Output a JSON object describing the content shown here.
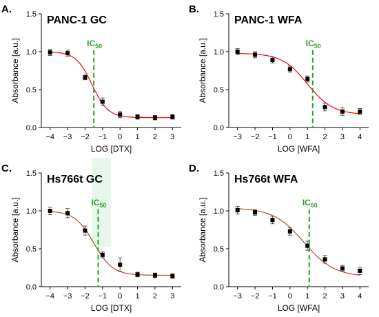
{
  "colors": {
    "axis": "#000000",
    "point": "#000000",
    "error_bar": "#444444",
    "ic50": "#2ca02c",
    "ic50_highlight": "#e6f7e9"
  },
  "chart_data": [
    {
      "type": "scatter",
      "panel_letter": "A.",
      "title": "PANC-1 GC",
      "xlabel": "LOG [DTX]",
      "ylabel": "Absorbance [a.u.]",
      "xlim": [
        -4.5,
        3.5
      ],
      "ylim": [
        0,
        1.5
      ],
      "xticks": [
        -4,
        -3,
        -2,
        -1,
        0,
        1,
        2,
        3
      ],
      "yticks": [
        0.0,
        0.5,
        1.0,
        1.5
      ],
      "ytick_labels": [
        "0.0",
        "0.5",
        "1.0",
        "1.5"
      ],
      "grid": false,
      "curve_color": "#ff0000",
      "ic50_label": "IC",
      "ic50_sub": "50",
      "ic50_x": -1.5,
      "ic50_highlight": false,
      "fit": {
        "top": 1.0,
        "bottom": 0.13,
        "logEC50": -1.6,
        "hill": 0.95
      },
      "points": [
        {
          "x": -4,
          "y": 0.99,
          "err": 0.04
        },
        {
          "x": -3,
          "y": 0.98,
          "err": 0.04
        },
        {
          "x": -2,
          "y": 0.66,
          "err": 0.03
        },
        {
          "x": -1,
          "y": 0.34,
          "err": 0.05
        },
        {
          "x": 0,
          "y": 0.17,
          "err": 0.04
        },
        {
          "x": 1,
          "y": 0.14,
          "err": 0.03
        },
        {
          "x": 2,
          "y": 0.13,
          "err": 0.03
        },
        {
          "x": 3,
          "y": 0.14,
          "err": 0.03
        }
      ]
    },
    {
      "type": "scatter",
      "panel_letter": "B.",
      "title": "PANC-1 WFA",
      "xlabel": "LOG [WFA]",
      "ylabel": "Absorbance [a.u.]",
      "xlim": [
        -3.5,
        4.5
      ],
      "ylim": [
        0,
        1.5
      ],
      "xticks": [
        -3,
        -2,
        -1,
        0,
        1,
        2,
        3,
        4
      ],
      "yticks": [
        0.0,
        0.5,
        1.0,
        1.5
      ],
      "ytick_labels": [
        "0.0",
        "0.5",
        "1.0",
        "1.5"
      ],
      "grid": false,
      "curve_color": "#ff0000",
      "ic50_label": "IC",
      "ic50_sub": "50",
      "ic50_x": 1.3,
      "ic50_highlight": false,
      "fit": {
        "top": 0.98,
        "bottom": 0.17,
        "logEC50": 1.0,
        "hill": 0.6
      },
      "points": [
        {
          "x": -3,
          "y": 1.0,
          "err": 0.04
        },
        {
          "x": -2,
          "y": 0.96,
          "err": 0.04
        },
        {
          "x": -1,
          "y": 0.89,
          "err": 0.04
        },
        {
          "x": 0,
          "y": 0.77,
          "err": 0.04
        },
        {
          "x": 1,
          "y": 0.64,
          "err": 0.04
        },
        {
          "x": 2,
          "y": 0.27,
          "err": 0.05
        },
        {
          "x": 3,
          "y": 0.21,
          "err": 0.05
        },
        {
          "x": 4,
          "y": 0.21,
          "err": 0.04
        }
      ]
    },
    {
      "type": "scatter",
      "panel_letter": "C.",
      "title": "Hs766t GC",
      "xlabel": "LOG [DTX]",
      "ylabel": "Absorbance [a.u.]",
      "xlim": [
        -4.5,
        3.5
      ],
      "ylim": [
        0,
        1.5
      ],
      "xticks": [
        -4,
        -3,
        -2,
        -1,
        0,
        1,
        2,
        3
      ],
      "yticks": [
        0.0,
        0.5,
        1.0,
        1.5
      ],
      "ytick_labels": [
        "0.0",
        "0.5",
        "1.0",
        "1.5"
      ],
      "grid": false,
      "curve_color": "#a0522d",
      "ic50_label": "IC",
      "ic50_sub": "50",
      "ic50_x": -1.25,
      "ic50_highlight": true,
      "fit": {
        "top": 1.0,
        "bottom": 0.15,
        "logEC50": -1.5,
        "hill": 0.8
      },
      "points": [
        {
          "x": -4,
          "y": 1.0,
          "err": 0.05
        },
        {
          "x": -3,
          "y": 0.97,
          "err": 0.06
        },
        {
          "x": -2,
          "y": 0.74,
          "err": 0.06
        },
        {
          "x": -1,
          "y": 0.42,
          "err": 0.04
        },
        {
          "x": 0,
          "y": 0.29,
          "err": 0.09
        },
        {
          "x": 1,
          "y": 0.16,
          "err": 0.03
        },
        {
          "x": 2,
          "y": 0.15,
          "err": 0.03
        },
        {
          "x": 3,
          "y": 0.14,
          "err": 0.03
        }
      ]
    },
    {
      "type": "scatter",
      "panel_letter": "D.",
      "title": "Hs766t WFA",
      "xlabel": "LOG [WFA]",
      "ylabel": "Absorbance [a.u.]",
      "xlim": [
        -3.5,
        4.5
      ],
      "ylim": [
        0,
        1.5
      ],
      "xticks": [
        -3,
        -2,
        -1,
        0,
        1,
        2,
        3,
        4
      ],
      "yticks": [
        0.0,
        0.5,
        1.0,
        1.5
      ],
      "ytick_labels": [
        "0.0",
        "0.5",
        "1.0",
        "1.5"
      ],
      "grid": false,
      "curve_color": "#a0522d",
      "ic50_label": "IC",
      "ic50_sub": "50",
      "ic50_x": 1.1,
      "ic50_highlight": false,
      "fit": {
        "top": 1.04,
        "bottom": 0.13,
        "logEC50": 0.8,
        "hill": 0.5
      },
      "points": [
        {
          "x": -3,
          "y": 1.01,
          "err": 0.05
        },
        {
          "x": -2,
          "y": 0.98,
          "err": 0.04
        },
        {
          "x": -1,
          "y": 0.88,
          "err": 0.05
        },
        {
          "x": 0,
          "y": 0.73,
          "err": 0.05
        },
        {
          "x": 1,
          "y": 0.54,
          "err": 0.06
        },
        {
          "x": 2,
          "y": 0.36,
          "err": 0.05
        },
        {
          "x": 3,
          "y": 0.24,
          "err": 0.04
        },
        {
          "x": 4,
          "y": 0.21,
          "err": 0.05
        }
      ]
    }
  ]
}
